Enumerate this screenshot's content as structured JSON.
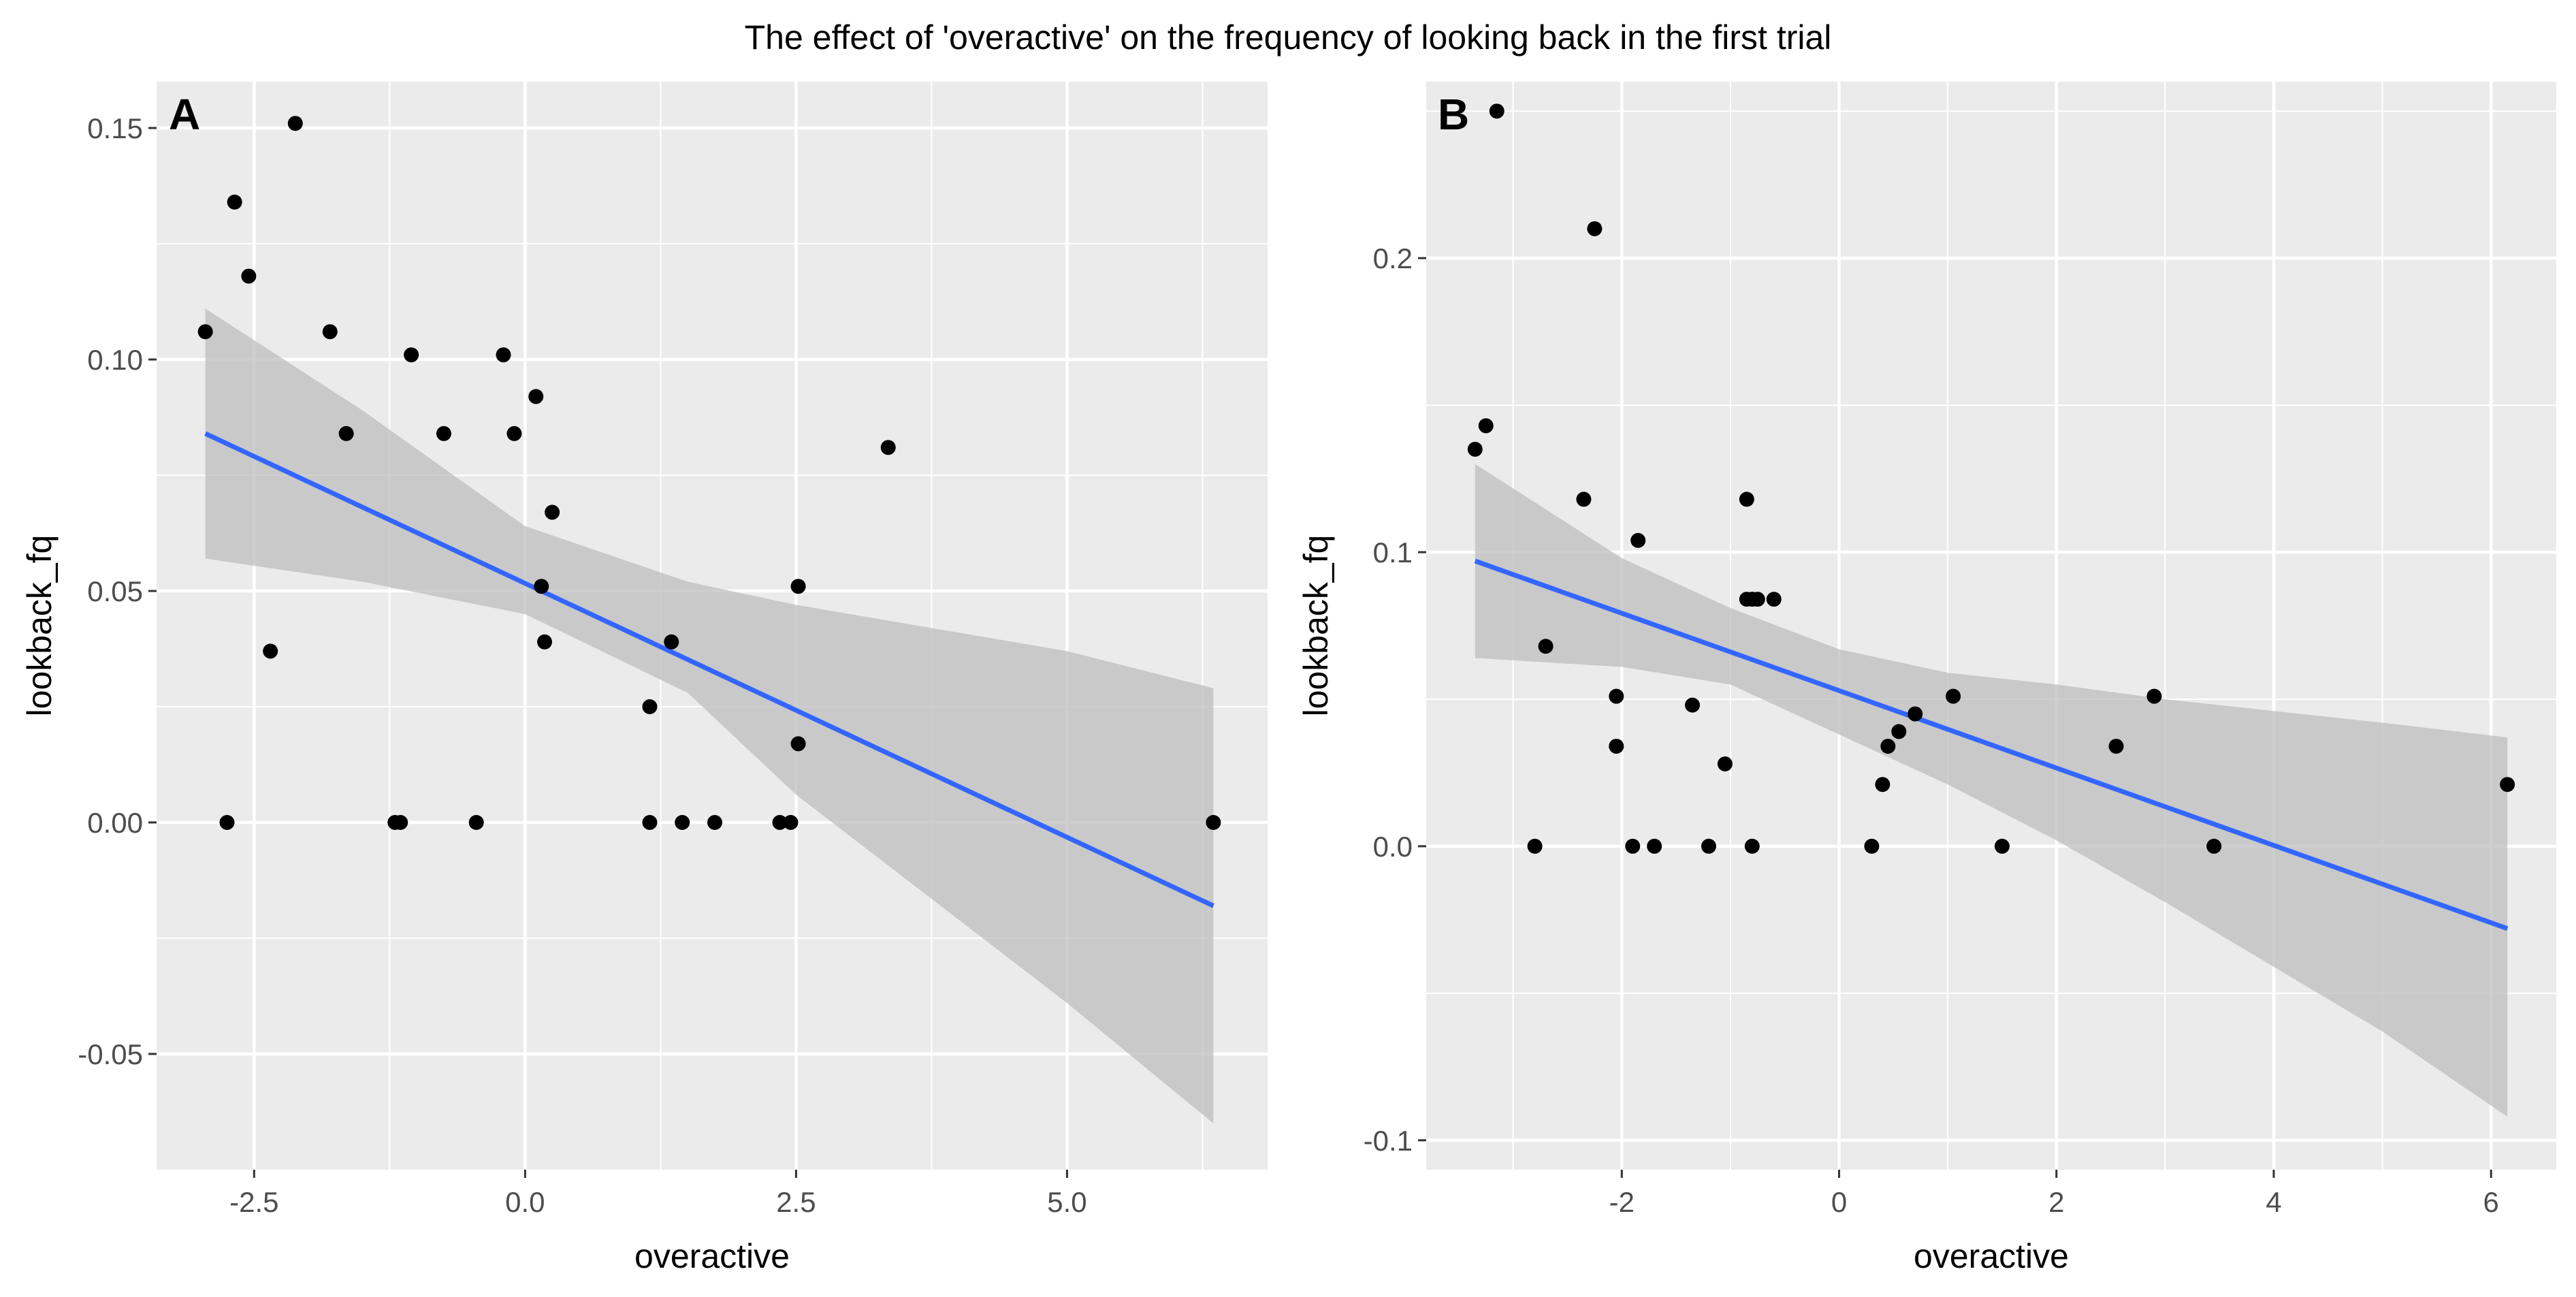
{
  "figure": {
    "title": "The effect of 'overactive' on the frequency of looking back in the first trial"
  },
  "colors": {
    "panel_bg": "#ebebeb",
    "grid_major": "#ffffff",
    "point": "#000000",
    "fit_line": "#3366ff",
    "ribbon": "#bdbdbd",
    "axis_text": "#4d4d4d",
    "axis_title": "#000000"
  },
  "chart_data": [
    {
      "panel": "A",
      "type": "scatter",
      "xlabel": "overactive",
      "ylabel": "lookback_fq",
      "xlim": [
        -3.4,
        6.85
      ],
      "ylim": [
        -0.075,
        0.16
      ],
      "xticks": [
        -2.5,
        0.0,
        2.5,
        5.0
      ],
      "xtick_labels": [
        "-2.5",
        "0.0",
        "2.5",
        "5.0"
      ],
      "yticks": [
        -0.05,
        0.0,
        0.05,
        0.1,
        0.15
      ],
      "ytick_labels": [
        "-0.05",
        "0.00",
        "0.05",
        "0.10",
        "0.15"
      ],
      "points": {
        "x": [
          -2.95,
          -2.68,
          -2.55,
          -2.35,
          -2.12,
          -1.8,
          -1.65,
          -2.75,
          -1.2,
          -1.15,
          -1.05,
          -0.75,
          -0.45,
          -0.2,
          -0.1,
          0.1,
          0.15,
          0.18,
          0.25,
          1.15,
          1.15,
          1.35,
          1.45,
          1.75,
          2.35,
          2.45,
          2.52,
          2.52,
          3.35,
          6.35
        ],
        "y": [
          0.106,
          0.134,
          0.118,
          0.037,
          0.151,
          0.106,
          0.084,
          0.0,
          0.0,
          0.0,
          0.101,
          0.084,
          0.0,
          0.101,
          0.084,
          0.092,
          0.051,
          0.039,
          0.067,
          0.025,
          0.0,
          0.039,
          0.0,
          0.0,
          0.0,
          0.0,
          0.051,
          0.017,
          0.081,
          0.0
        ]
      },
      "fit": {
        "x": [
          -2.95,
          6.35
        ],
        "y": [
          0.084,
          -0.018
        ]
      },
      "ribbon": {
        "x": [
          -2.95,
          -1.5,
          0.0,
          1.5,
          2.5,
          3.5,
          5.0,
          6.35
        ],
        "upper": [
          0.111,
          0.089,
          0.064,
          0.052,
          0.047,
          0.043,
          0.037,
          0.029
        ],
        "lower": [
          0.057,
          0.052,
          0.045,
          0.028,
          0.006,
          -0.012,
          -0.039,
          -0.065
        ]
      }
    },
    {
      "panel": "B",
      "type": "scatter",
      "xlabel": "overactive",
      "ylabel": "lookback_fq",
      "xlim": [
        -3.8,
        6.6
      ],
      "ylim": [
        -0.11,
        0.26
      ],
      "xticks": [
        -2,
        0,
        2,
        4,
        6
      ],
      "xtick_labels": [
        "-2",
        "0",
        "2",
        "4",
        "6"
      ],
      "yticks": [
        -0.1,
        0.0,
        0.1,
        0.2
      ],
      "ytick_labels": [
        "-0.1",
        "0.0",
        "0.1",
        "0.2"
      ],
      "points": {
        "x": [
          -3.35,
          -3.25,
          -3.15,
          -2.8,
          -2.7,
          -2.35,
          -2.25,
          -2.05,
          -2.05,
          -1.9,
          -1.85,
          -1.7,
          -1.35,
          -1.2,
          -1.05,
          -0.85,
          -0.85,
          -0.8,
          -0.8,
          -0.75,
          -0.6,
          0.3,
          0.4,
          0.45,
          0.55,
          0.7,
          1.05,
          1.5,
          2.55,
          2.9,
          3.45,
          6.15
        ],
        "y": [
          0.135,
          0.143,
          0.25,
          0.0,
          0.068,
          0.118,
          0.21,
          0.051,
          0.034,
          0.0,
          0.104,
          0.0,
          0.048,
          0.0,
          0.028,
          0.118,
          0.084,
          0.084,
          0.0,
          0.084,
          0.084,
          0.0,
          0.021,
          0.034,
          0.039,
          0.045,
          0.051,
          0.0,
          0.034,
          0.051,
          0.0,
          0.021
        ]
      },
      "fit": {
        "x": [
          -3.35,
          6.15
        ],
        "y": [
          0.097,
          -0.028
        ]
      },
      "ribbon": {
        "x": [
          -3.35,
          -2.0,
          -1.0,
          0.0,
          1.0,
          2.0,
          3.0,
          4.0,
          5.0,
          6.15
        ],
        "upper": [
          0.13,
          0.098,
          0.081,
          0.067,
          0.059,
          0.055,
          0.05,
          0.046,
          0.042,
          0.037
        ],
        "lower": [
          0.064,
          0.061,
          0.055,
          0.038,
          0.021,
          0.002,
          -0.019,
          -0.041,
          -0.063,
          -0.092
        ]
      }
    }
  ]
}
